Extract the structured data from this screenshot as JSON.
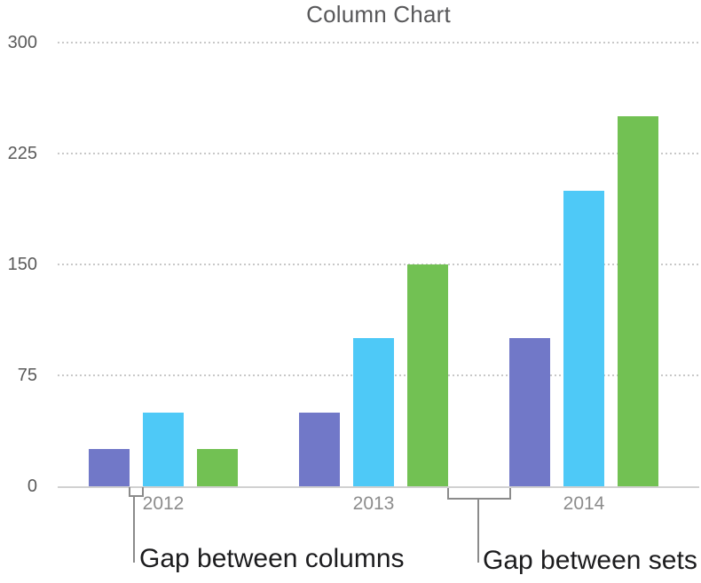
{
  "chart_data": {
    "type": "bar",
    "title": "Column Chart",
    "categories": [
      "2012",
      "2013",
      "2014"
    ],
    "series": [
      {
        "color_name": "purple",
        "color": "#7178C8",
        "values": [
          25,
          50,
          100
        ]
      },
      {
        "color_name": "blue",
        "color": "#4EC9F7",
        "values": [
          50,
          100,
          200
        ]
      },
      {
        "color_name": "green",
        "color": "#72C153",
        "values": [
          25,
          150,
          250
        ]
      }
    ],
    "xlabel": "",
    "ylabel": "",
    "y_ticks": [
      0,
      75,
      150,
      225,
      300
    ],
    "ylim": [
      0,
      300
    ],
    "grid": "dotted-horizontal",
    "legend_position": "none"
  },
  "annotations": {
    "gap_between_columns_label": "Gap between columns",
    "gap_between_sets_label": "Gap between sets"
  },
  "colors": {
    "title_text": "#58585A",
    "y_tick_text": "#5A5A5A",
    "x_tick_text": "#8C8C8C",
    "gridline": "#C8C8C8",
    "axis_line": "#D1D1D1",
    "bracket": "#8B8B8B",
    "annotation_text": "#1C1C1E",
    "background": "#FFFFFF"
  }
}
